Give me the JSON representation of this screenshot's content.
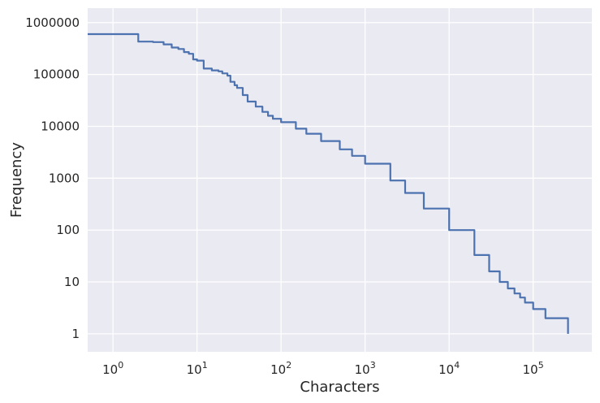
{
  "chart_data": {
    "type": "line",
    "xlabel": "Characters",
    "ylabel": "Frequency",
    "xscale": "log",
    "yscale": "log",
    "xlim": [
      0.5,
      500000
    ],
    "ylim": [
      0.45,
      1900000
    ],
    "grid": true,
    "x_ticks": [
      {
        "value": 1,
        "base": "10",
        "exp": "0"
      },
      {
        "value": 10,
        "base": "10",
        "exp": "1"
      },
      {
        "value": 100,
        "base": "10",
        "exp": "2"
      },
      {
        "value": 1000,
        "base": "10",
        "exp": "3"
      },
      {
        "value": 10000,
        "base": "10",
        "exp": "4"
      },
      {
        "value": 100000,
        "base": "10",
        "exp": "5"
      }
    ],
    "y_ticks": [
      {
        "value": 1,
        "label": "1"
      },
      {
        "value": 10,
        "label": "10"
      },
      {
        "value": 100,
        "label": "100"
      },
      {
        "value": 1000,
        "label": "1000"
      },
      {
        "value": 10000,
        "label": "10000"
      },
      {
        "value": 100000,
        "label": "100000"
      },
      {
        "value": 1000000,
        "label": "1000000"
      }
    ],
    "series": [
      {
        "color": "#4c72b0",
        "x": [
          0.5,
          1,
          2,
          3,
          4,
          5,
          6,
          7,
          8,
          9,
          10,
          12,
          15,
          18,
          20,
          23,
          25,
          28,
          30,
          35,
          40,
          50,
          60,
          70,
          80,
          100,
          150,
          200,
          300,
          500,
          700,
          1000,
          2000,
          3000,
          5000,
          10000,
          20000,
          30000,
          40000,
          50000,
          60000,
          70000,
          80000,
          100000,
          140000,
          260000
        ],
        "y": [
          600000,
          600000,
          430000,
          420000,
          380000,
          330000,
          310000,
          270000,
          250000,
          195000,
          185000,
          130000,
          120000,
          115000,
          105000,
          95000,
          72000,
          62000,
          55000,
          40000,
          30000,
          24000,
          19000,
          16000,
          14000,
          12000,
          9000,
          7200,
          5200,
          3600,
          2700,
          1900,
          900,
          520,
          260,
          100,
          33,
          16,
          10,
          7.5,
          6,
          5,
          4,
          3,
          2,
          1
        ]
      }
    ]
  }
}
